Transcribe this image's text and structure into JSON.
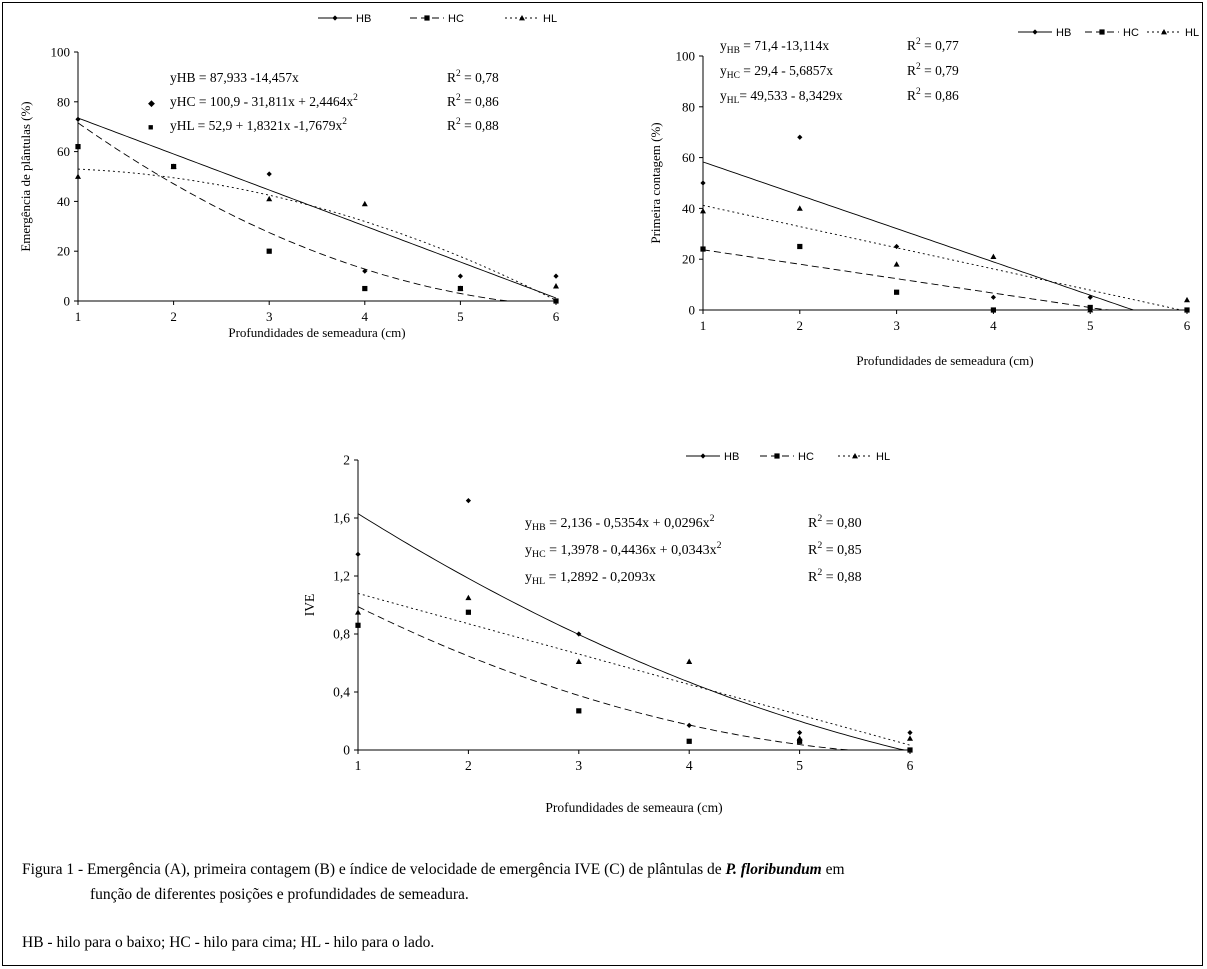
{
  "chart_data": [
    {
      "type": "scatter",
      "ylabel": "Emergência de plântulas (%)",
      "xlabel": "Profundidades de semeadura (cm)",
      "x": [
        1,
        2,
        3,
        4,
        5,
        6
      ],
      "xticks": [
        "1",
        "2",
        "3",
        "4",
        "5",
        "6"
      ],
      "yticks": [
        "0",
        "20",
        "40",
        "60",
        "80",
        "100"
      ],
      "ylim": [
        0,
        100
      ],
      "xlim": [
        1,
        6
      ],
      "legend": [
        "HB",
        "HC",
        "HL"
      ],
      "series": [
        {
          "name": "HB",
          "marker": "diamond",
          "values": [
            73,
            54,
            51,
            12,
            10,
            10
          ],
          "fit": {
            "type": "linear",
            "a": 87.933,
            "b": -14.457
          }
        },
        {
          "name": "HC",
          "marker": "square",
          "values": [
            62,
            54,
            20,
            5,
            5,
            0
          ],
          "fit": {
            "type": "quadratic",
            "a": 100.9,
            "b": -31.811,
            "c": 2.4464
          }
        },
        {
          "name": "HL",
          "marker": "triangle",
          "values": [
            50,
            54,
            41,
            39,
            5,
            6
          ],
          "fit": {
            "type": "quadratic",
            "a": 52.9,
            "b": 1.8321,
            "c": -1.7679
          }
        }
      ],
      "equations": [
        {
          "marker": "",
          "lhs": "yHB = ",
          "rhs": " 87,933 -14,457x",
          "r2": "0,78"
        },
        {
          "marker": "◆",
          "lhs": "yHC = ",
          "rhs": "100,9 - 31,811x + 2,4464x",
          "sup": "2",
          "r2": "0,86"
        },
        {
          "marker": "■",
          "lhs": "yHL = ",
          "rhs": "52,9 + 1,8321x -1,7679x",
          "sup": "2",
          "r2": "0,88"
        }
      ]
    },
    {
      "type": "scatter",
      "ylabel": "Primeira contagem (%)",
      "xlabel": "Profundidades de semeadura (cm)",
      "x": [
        1,
        2,
        3,
        4,
        5,
        6
      ],
      "xticks": [
        "1",
        "2",
        "3",
        "4",
        "5",
        "6"
      ],
      "yticks": [
        "0",
        "20",
        "40",
        "60",
        "80",
        "100"
      ],
      "ylim": [
        0,
        100
      ],
      "xlim": [
        1,
        6
      ],
      "legend": [
        "HB",
        "HC",
        "HL"
      ],
      "series": [
        {
          "name": "HB",
          "marker": "diamond",
          "values": [
            50,
            68,
            25,
            5,
            5,
            0
          ],
          "fit": {
            "type": "linear",
            "a": 71.4,
            "b": -13.114
          }
        },
        {
          "name": "HC",
          "marker": "square",
          "values": [
            24,
            25,
            7,
            0,
            1,
            0
          ],
          "fit": {
            "type": "linear",
            "a": 29.4,
            "b": -5.6857
          }
        },
        {
          "name": "HL",
          "marker": "triangle",
          "values": [
            39,
            40,
            18,
            21,
            0,
            4
          ],
          "fit": {
            "type": "linear",
            "a": 49.533,
            "b": -8.3429
          }
        }
      ],
      "equations": [
        {
          "lhs": "y",
          "sub": "HB",
          "rhs": " =  71,4 -13,114x",
          "r2": "0,77"
        },
        {
          "lhs": "y",
          "sub": "HC",
          "rhs": " =  29,4 - 5,6857x",
          "r2": "0,79"
        },
        {
          "lhs": "y",
          "sub": "HL",
          "rhs": "=  49,533 - 8,3429x",
          "r2": "0,86"
        }
      ]
    },
    {
      "type": "scatter",
      "ylabel": "IVE",
      "xlabel": "Profundidades de semeaura (cm)",
      "x": [
        1,
        2,
        3,
        4,
        5,
        6
      ],
      "xticks": [
        "1",
        "2",
        "3",
        "4",
        "5",
        "6"
      ],
      "yticks": [
        "0",
        "0,4",
        "0,8",
        "1,2",
        "1,6",
        "2"
      ],
      "ylim": [
        0,
        2
      ],
      "xlim": [
        1,
        6
      ],
      "legend": [
        "HB",
        "HC",
        "HL"
      ],
      "series": [
        {
          "name": "HB",
          "marker": "diamond",
          "values": [
            1.35,
            1.72,
            0.8,
            0.17,
            0.12,
            0.12
          ],
          "fit": {
            "type": "quadratic",
            "a": 2.136,
            "b": -0.5354,
            "c": 0.0296
          }
        },
        {
          "name": "HC",
          "marker": "square",
          "values": [
            0.86,
            0.95,
            0.27,
            0.06,
            0.06,
            0.0
          ],
          "fit": {
            "type": "quadratic",
            "a": 1.3978,
            "b": -0.4436,
            "c": 0.0343
          }
        },
        {
          "name": "HL",
          "marker": "triangle",
          "values": [
            0.95,
            1.05,
            0.61,
            0.61,
            0.08,
            0.08
          ],
          "fit": {
            "type": "linear",
            "a": 1.2892,
            "b": -0.2093
          }
        }
      ],
      "equations": [
        {
          "lhs": "y",
          "sub": "HB",
          "rhs": " =  2,136 - 0,5354x + 0,0296x",
          "sup": "2",
          "r2": "0,80"
        },
        {
          "lhs": "y",
          "sub": "HC",
          "rhs": " = 1,3978 - 0,4436x + 0,0343x",
          "sup": "2",
          "r2": "0,85"
        },
        {
          "lhs": "y",
          "sub": "HL",
          "rhs": " =  1,2892 - 0,2093x",
          "r2": "0,88"
        }
      ]
    }
  ],
  "caption": {
    "line1_before": "Figura 1 - Emergência (A), primeira contagem (B) e índice de velocidade de emergência IVE (C) de plântulas de ",
    "species": "P. floribundum",
    "line1_after": " em",
    "line2": "função de diferentes posições e profundidades de semeadura."
  },
  "footnote": "HB - hilo para o baixo; HC - hilo para cima; HL - hilo para o lado."
}
